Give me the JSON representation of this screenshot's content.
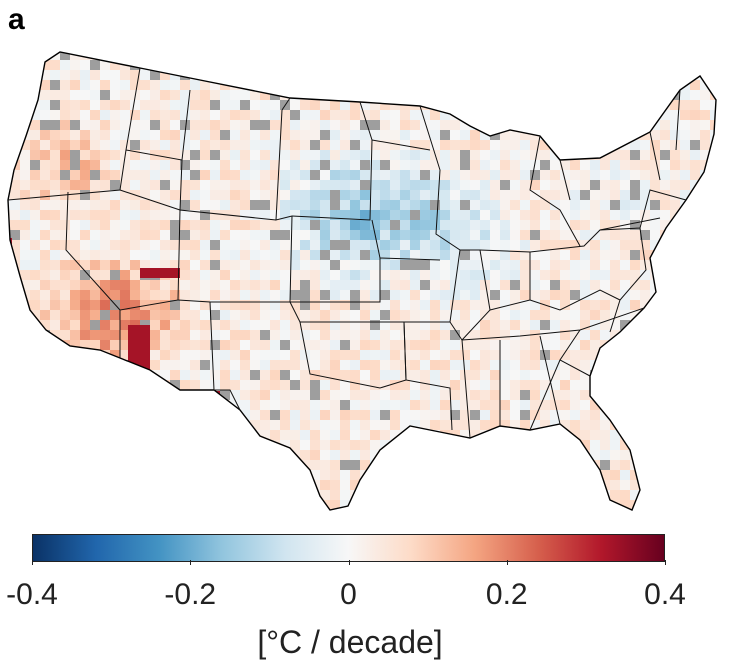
{
  "panel_label": "a",
  "colorbar": {
    "title": "[°C / decade]",
    "range": [
      -0.4,
      0.4
    ],
    "ticks": [
      {
        "value": -0.4,
        "label": "-0.4"
      },
      {
        "value": -0.2,
        "label": "-0.2"
      },
      {
        "value": 0,
        "label": "0"
      },
      {
        "value": 0.2,
        "label": "0.2"
      },
      {
        "value": 0.4,
        "label": "0.4"
      }
    ],
    "stops": [
      "#0a3266",
      "#2166ac",
      "#4393c3",
      "#92c5de",
      "#d1e5f0",
      "#f7f7f7",
      "#fddbc7",
      "#f4a582",
      "#d6604d",
      "#b2182b",
      "#67001f"
    ]
  },
  "colors": {
    "no_data": "#9e9e9e",
    "border": "#000000",
    "background": "#ffffff"
  }
}
